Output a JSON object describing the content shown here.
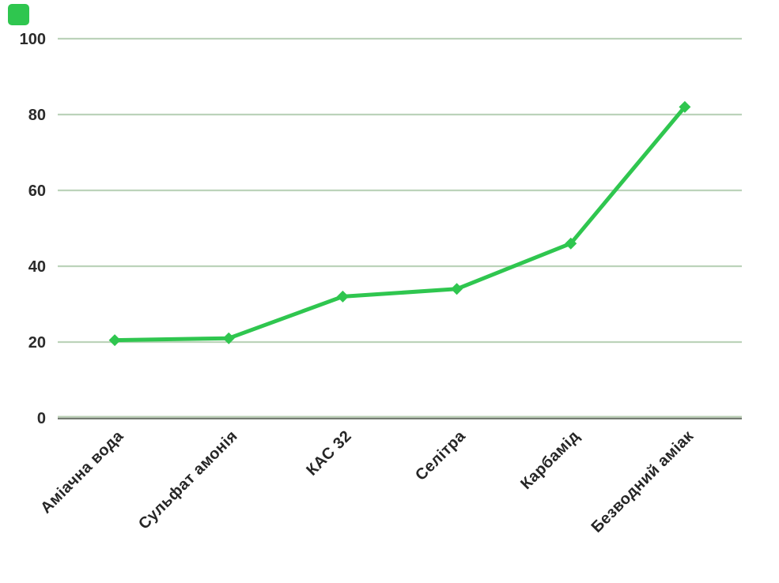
{
  "brand": {
    "color": "#2FC64F"
  },
  "chart_data": {
    "type": "line",
    "title": "",
    "xlabel": "",
    "ylabel": "",
    "categories": [
      "Аміачна вода",
      "Сульфат амонія",
      "КАС 32",
      "Селітра",
      "Карбамід",
      "Безводний аміак"
    ],
    "values": [
      20.5,
      21,
      32,
      34,
      46,
      82
    ],
    "ylim": [
      0,
      100
    ],
    "yticks": [
      0,
      20,
      40,
      60,
      80,
      100
    ],
    "grid": "horizontal",
    "legend": false,
    "marker": "diamond",
    "colors": {
      "line": "#2FC64F",
      "marker": "#2FC64F",
      "gridline": "#BCD3BA",
      "axis_line": "#6E756C",
      "axis_highlight": "#B9CFB3",
      "tick_label": "#2B2B2B",
      "category_label": "#262626"
    }
  }
}
